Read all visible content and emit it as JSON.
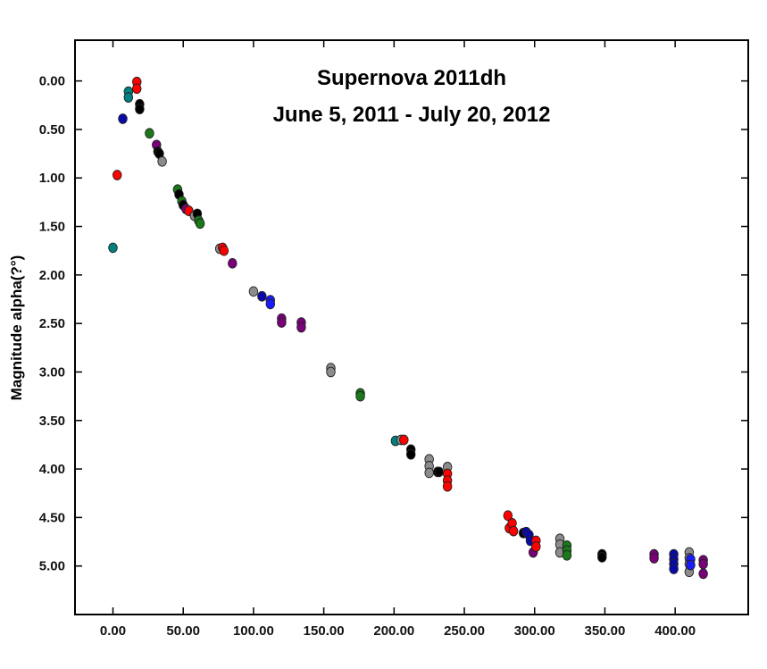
{
  "chart_data": {
    "type": "scatter",
    "title": "Supernova 2011dh",
    "subtitle": "June 5, 2011 - July 20, 2012",
    "xlabel": "",
    "ylabel": "Magnitude alpha(?°)",
    "xlim": [
      -27,
      452
    ],
    "ylim": [
      5.5,
      -0.42
    ],
    "y_inverted": true,
    "grid": false,
    "legend": "none",
    "x_ticks": [
      0,
      50,
      100,
      150,
      200,
      250,
      300,
      350,
      400
    ],
    "x_tick_labels": [
      "0.00",
      "50.00",
      "100.00",
      "150.00",
      "200.00",
      "250.00",
      "300.00",
      "350.00",
      "400.00"
    ],
    "y_ticks": [
      0,
      0.5,
      1,
      1.5,
      2,
      2.5,
      3,
      3.5,
      4,
      4.5,
      5
    ],
    "y_tick_labels": [
      "0.00",
      "0.50",
      "1.00",
      "1.50",
      "2.00",
      "2.50",
      "3.00",
      "3.50",
      "4.00",
      "4.50",
      "5.00"
    ],
    "colors": {
      "teal": "#008080",
      "red": "#ff0000",
      "navy": "#0a0aa8",
      "blue": "#1a1aff",
      "black": "#000000",
      "green": "#1a7a1a",
      "purple": "#7a007a",
      "gray": "#8c8c8c"
    },
    "points": [
      {
        "x": 0,
        "y": 1.72,
        "c": "teal"
      },
      {
        "x": 3,
        "y": 0.97,
        "c": "red"
      },
      {
        "x": 7,
        "y": 0.39,
        "c": "navy"
      },
      {
        "x": 11,
        "y": 0.11,
        "c": "teal"
      },
      {
        "x": 11,
        "y": 0.17,
        "c": "teal"
      },
      {
        "x": 17,
        "y": 0.01,
        "c": "red"
      },
      {
        "x": 17,
        "y": 0.08,
        "c": "red"
      },
      {
        "x": 19,
        "y": 0.24,
        "c": "black"
      },
      {
        "x": 19,
        "y": 0.29,
        "c": "black"
      },
      {
        "x": 26,
        "y": 0.54,
        "c": "green"
      },
      {
        "x": 31,
        "y": 0.66,
        "c": "purple"
      },
      {
        "x": 32,
        "y": 0.73,
        "c": "black"
      },
      {
        "x": 33,
        "y": 0.75,
        "c": "black"
      },
      {
        "x": 35,
        "y": 0.83,
        "c": "gray"
      },
      {
        "x": 46,
        "y": 1.12,
        "c": "green"
      },
      {
        "x": 47,
        "y": 1.17,
        "c": "black"
      },
      {
        "x": 49,
        "y": 1.24,
        "c": "green"
      },
      {
        "x": 50,
        "y": 1.28,
        "c": "black"
      },
      {
        "x": 52,
        "y": 1.32,
        "c": "purple"
      },
      {
        "x": 54,
        "y": 1.34,
        "c": "red"
      },
      {
        "x": 58,
        "y": 1.39,
        "c": "gray"
      },
      {
        "x": 60,
        "y": 1.37,
        "c": "black"
      },
      {
        "x": 61,
        "y": 1.44,
        "c": "green"
      },
      {
        "x": 62,
        "y": 1.47,
        "c": "green"
      },
      {
        "x": 76,
        "y": 1.73,
        "c": "gray"
      },
      {
        "x": 78,
        "y": 1.72,
        "c": "red"
      },
      {
        "x": 79,
        "y": 1.75,
        "c": "red"
      },
      {
        "x": 85,
        "y": 1.88,
        "c": "purple"
      },
      {
        "x": 100,
        "y": 2.17,
        "c": "gray"
      },
      {
        "x": 106,
        "y": 2.22,
        "c": "navy"
      },
      {
        "x": 112,
        "y": 2.26,
        "c": "blue"
      },
      {
        "x": 112,
        "y": 2.3,
        "c": "blue"
      },
      {
        "x": 120,
        "y": 2.45,
        "c": "purple"
      },
      {
        "x": 120,
        "y": 2.49,
        "c": "purple"
      },
      {
        "x": 134,
        "y": 2.49,
        "c": "purple"
      },
      {
        "x": 134,
        "y": 2.54,
        "c": "purple"
      },
      {
        "x": 155,
        "y": 2.96,
        "c": "gray"
      },
      {
        "x": 155,
        "y": 3.0,
        "c": "gray"
      },
      {
        "x": 176,
        "y": 3.22,
        "c": "green"
      },
      {
        "x": 176,
        "y": 3.25,
        "c": "green"
      },
      {
        "x": 201,
        "y": 3.71,
        "c": "teal"
      },
      {
        "x": 205,
        "y": 3.7,
        "c": "gray"
      },
      {
        "x": 207,
        "y": 3.7,
        "c": "red"
      },
      {
        "x": 212,
        "y": 3.8,
        "c": "black"
      },
      {
        "x": 212,
        "y": 3.85,
        "c": "black"
      },
      {
        "x": 225,
        "y": 3.9,
        "c": "gray"
      },
      {
        "x": 225,
        "y": 3.97,
        "c": "gray"
      },
      {
        "x": 225,
        "y": 4.04,
        "c": "gray"
      },
      {
        "x": 231,
        "y": 4.03,
        "c": "black"
      },
      {
        "x": 232,
        "y": 4.03,
        "c": "black"
      },
      {
        "x": 238,
        "y": 3.98,
        "c": "gray"
      },
      {
        "x": 238,
        "y": 4.05,
        "c": "red"
      },
      {
        "x": 238,
        "y": 4.12,
        "c": "red"
      },
      {
        "x": 238,
        "y": 4.18,
        "c": "red"
      },
      {
        "x": 281,
        "y": 4.48,
        "c": "red"
      },
      {
        "x": 282,
        "y": 4.61,
        "c": "red"
      },
      {
        "x": 284,
        "y": 4.56,
        "c": "red"
      },
      {
        "x": 285,
        "y": 4.64,
        "c": "red"
      },
      {
        "x": 292,
        "y": 4.66,
        "c": "black"
      },
      {
        "x": 294,
        "y": 4.65,
        "c": "navy"
      },
      {
        "x": 296,
        "y": 4.68,
        "c": "navy"
      },
      {
        "x": 297,
        "y": 4.74,
        "c": "navy"
      },
      {
        "x": 299,
        "y": 4.86,
        "c": "purple"
      },
      {
        "x": 301,
        "y": 4.74,
        "c": "red"
      },
      {
        "x": 301,
        "y": 4.8,
        "c": "red"
      },
      {
        "x": 318,
        "y": 4.72,
        "c": "gray"
      },
      {
        "x": 318,
        "y": 4.78,
        "c": "gray"
      },
      {
        "x": 318,
        "y": 4.86,
        "c": "gray"
      },
      {
        "x": 323,
        "y": 4.79,
        "c": "green"
      },
      {
        "x": 323,
        "y": 4.84,
        "c": "green"
      },
      {
        "x": 323,
        "y": 4.89,
        "c": "green"
      },
      {
        "x": 348,
        "y": 4.88,
        "c": "black"
      },
      {
        "x": 348,
        "y": 4.91,
        "c": "black"
      },
      {
        "x": 385,
        "y": 4.88,
        "c": "purple"
      },
      {
        "x": 385,
        "y": 4.92,
        "c": "purple"
      },
      {
        "x": 399,
        "y": 4.88,
        "c": "navy"
      },
      {
        "x": 399,
        "y": 4.93,
        "c": "navy"
      },
      {
        "x": 399,
        "y": 4.98,
        "c": "navy"
      },
      {
        "x": 399,
        "y": 5.03,
        "c": "navy"
      },
      {
        "x": 410,
        "y": 4.86,
        "c": "gray"
      },
      {
        "x": 410,
        "y": 4.92,
        "c": "gray"
      },
      {
        "x": 410,
        "y": 4.98,
        "c": "gray"
      },
      {
        "x": 410,
        "y": 5.06,
        "c": "gray"
      },
      {
        "x": 411,
        "y": 4.93,
        "c": "blue"
      },
      {
        "x": 411,
        "y": 4.99,
        "c": "blue"
      },
      {
        "x": 420,
        "y": 4.94,
        "c": "purple"
      },
      {
        "x": 420,
        "y": 4.98,
        "c": "purple"
      },
      {
        "x": 420,
        "y": 5.08,
        "c": "purple"
      }
    ]
  }
}
